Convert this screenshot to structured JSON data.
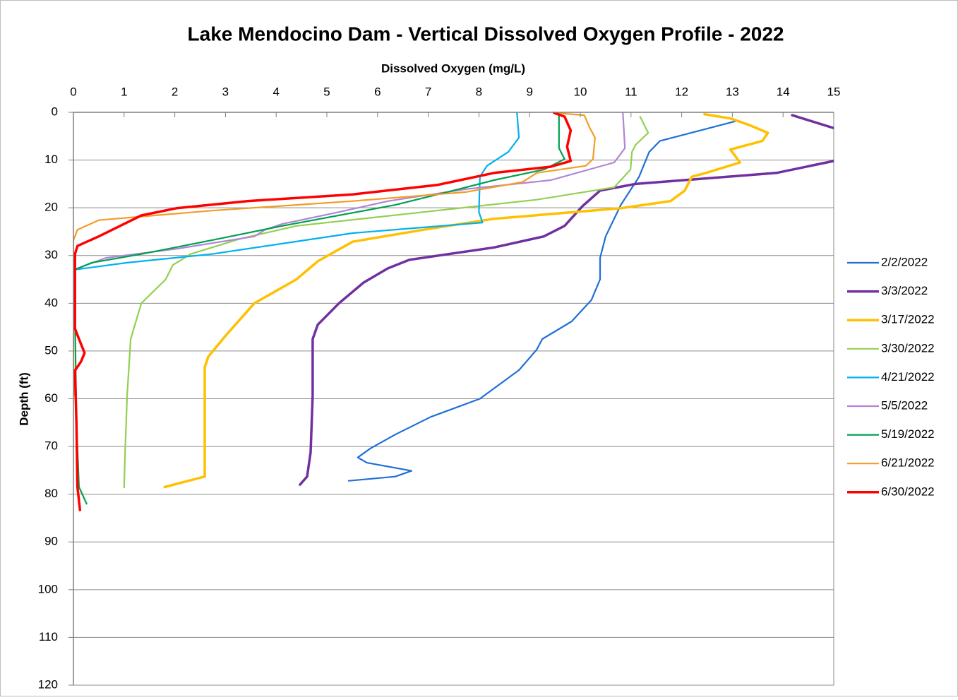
{
  "chart_data": {
    "type": "line",
    "title": "Lake Mendocino Dam - Vertical Dissolved Oxygen Profile - 2022",
    "x_label": "Dissolved Oxygen (mg/L)",
    "y_label": "Depth (ft)",
    "xlim": [
      0,
      15
    ],
    "xticks": [
      0,
      1,
      2,
      3,
      4,
      5,
      6,
      7,
      8,
      9,
      10,
      11,
      12,
      13,
      14,
      15
    ],
    "ylim": [
      0,
      120
    ],
    "yticks": [
      0,
      10,
      20,
      30,
      40,
      50,
      60,
      70,
      80,
      90,
      100,
      110,
      120
    ],
    "y_inverted": true,
    "x_axis_position": "top",
    "grid": true,
    "legend": "right",
    "series": [
      {
        "name": "2/2/2022",
        "color": "#1f6fd6",
        "line_width": 2.2,
        "x": [
          13.05,
          11.57,
          11.36,
          11.16,
          10.8,
          10.5,
          10.39,
          10.39,
          10.22,
          9.83,
          9.25,
          9.14,
          8.79,
          8.02,
          7.05,
          6.35,
          5.86,
          5.61,
          5.79,
          6.67,
          6.35,
          5.43
        ],
        "values": [
          1.9,
          6,
          8.3,
          13.5,
          19.4,
          26,
          30.5,
          35,
          39.3,
          43.8,
          47.5,
          49.7,
          54,
          60,
          63.8,
          67.5,
          70.4,
          72.3,
          73.4,
          75.1,
          76.3,
          77.2
        ]
      },
      {
        "name": "3/3/2022",
        "color": "#7030a0",
        "line_width": 3.5,
        "x": [
          14.18,
          15,
          15.6,
          15,
          13.87,
          11.09,
          10.39,
          10.04,
          9.69,
          9.28,
          8.3,
          6.63,
          6.2,
          5.72,
          5.24,
          4.82,
          4.72,
          4.72,
          4.68,
          4.61,
          4.47
        ],
        "values": [
          0.6,
          3.3,
          6.5,
          10.2,
          12.7,
          15,
          16.4,
          19.7,
          23.8,
          26,
          28.3,
          30.9,
          32.7,
          35.7,
          40,
          44.5,
          47.5,
          59.3,
          71.2,
          76.3,
          78
        ]
      },
      {
        "name": "3/17/2022",
        "color": "#ffc000",
        "line_width": 3.5,
        "x": [
          12.45,
          12.97,
          13.34,
          13.7,
          13.59,
          12.96,
          13.15,
          12.48,
          12.2,
          12.06,
          11.78,
          10.8,
          8.3,
          6.9,
          5.51,
          4.82,
          4.4,
          3.57,
          3.01,
          2.66,
          2.59,
          2.59,
          2.59,
          1.8
        ],
        "values": [
          0.4,
          1.3,
          2.7,
          4.3,
          6,
          7.8,
          10.5,
          12.7,
          13.5,
          16.4,
          18.6,
          20.1,
          22.3,
          24.6,
          27.1,
          31.2,
          35,
          40,
          46.7,
          51.2,
          53.4,
          65.2,
          76.3,
          78.5
        ]
      },
      {
        "name": "3/30/2022",
        "color": "#92d050",
        "line_width": 2.2,
        "x": [
          11.18,
          11.34,
          11.09,
          11.02,
          10.99,
          10.67,
          9.14,
          6.91,
          4.4,
          3.29,
          2.31,
          1.96,
          1.82,
          1.34,
          1.13,
          1.06,
          1.02,
          1.0
        ],
        "values": [
          0.9,
          4.3,
          6.8,
          8.3,
          12,
          15.7,
          18.3,
          20.9,
          23.8,
          26.5,
          29.7,
          32,
          35,
          40,
          47.5,
          59.3,
          71.2,
          78.6
        ]
      },
      {
        "name": "4/21/2022",
        "color": "#00b0f0",
        "line_width": 2.2,
        "x": [
          8.75,
          8.79,
          8.58,
          8.16,
          8.02,
          8.0,
          8.07,
          6.91,
          5.51,
          4.12,
          2.73,
          1.06,
          0
        ],
        "values": [
          0.1,
          5.3,
          8.3,
          11.2,
          13.5,
          20.9,
          23.1,
          24.1,
          25.3,
          27.5,
          29.7,
          31.5,
          33
        ]
      },
      {
        "name": "5/5/2022",
        "color": "#b084d8",
        "line_width": 2.2,
        "x": [
          10.84,
          10.88,
          10.67,
          9.42,
          7.74,
          6.21,
          5.24,
          4.12,
          3.78,
          3.57,
          2.03,
          0.64,
          0
        ],
        "values": [
          0.1,
          7.5,
          10.5,
          14.2,
          16.1,
          18.6,
          20.9,
          23.4,
          24.6,
          26,
          28.6,
          30.5,
          33
        ]
      },
      {
        "name": "5/19/2022",
        "color": "#00a050",
        "line_width": 2.2,
        "x": [
          9.58,
          9.58,
          9.69,
          9.28,
          8.3,
          7.6,
          6.35,
          4.12,
          2.73,
          1.34,
          0.36,
          0,
          0.03,
          0.06,
          0.11,
          0.26
        ],
        "values": [
          0.6,
          7.5,
          9.8,
          12,
          14.2,
          16.1,
          19.4,
          23.8,
          26.8,
          29.7,
          31.5,
          33.1,
          43,
          65,
          78.5,
          82
        ]
      },
      {
        "name": "6/21/2022",
        "color": "#f39c25",
        "line_width": 2.2,
        "x": [
          9.48,
          10.08,
          10.18,
          10.29,
          10.25,
          10.11,
          9.14,
          8.86,
          7.74,
          5.51,
          2.73,
          0.5,
          0.08,
          0,
          0,
          0.01
        ],
        "values": [
          0.1,
          0.6,
          3.1,
          5.3,
          9.8,
          11.2,
          12.7,
          14.6,
          16.7,
          18.6,
          20.6,
          22.6,
          24.6,
          26.8,
          50.4,
          59.3
        ]
      },
      {
        "name": "6/30/2022",
        "color": "#ff0000",
        "line_width": 3.5,
        "x": [
          9.48,
          9.69,
          9.81,
          9.74,
          9.81,
          9.42,
          8.3,
          7.19,
          5.51,
          3.43,
          2.03,
          1.34,
          0.92,
          0.5,
          0.08,
          0.03,
          0.03,
          0.11,
          0.22,
          0.15,
          0.03,
          0.06,
          0.08,
          0.13
        ],
        "values": [
          0.1,
          0.9,
          3.8,
          7.2,
          10.2,
          11.4,
          12.7,
          15.2,
          17.2,
          18.6,
          20.1,
          21.6,
          23.8,
          26,
          28,
          29.7,
          45.3,
          47.5,
          50.4,
          52.2,
          54.1,
          65.2,
          78.5,
          83.3
        ]
      }
    ]
  }
}
